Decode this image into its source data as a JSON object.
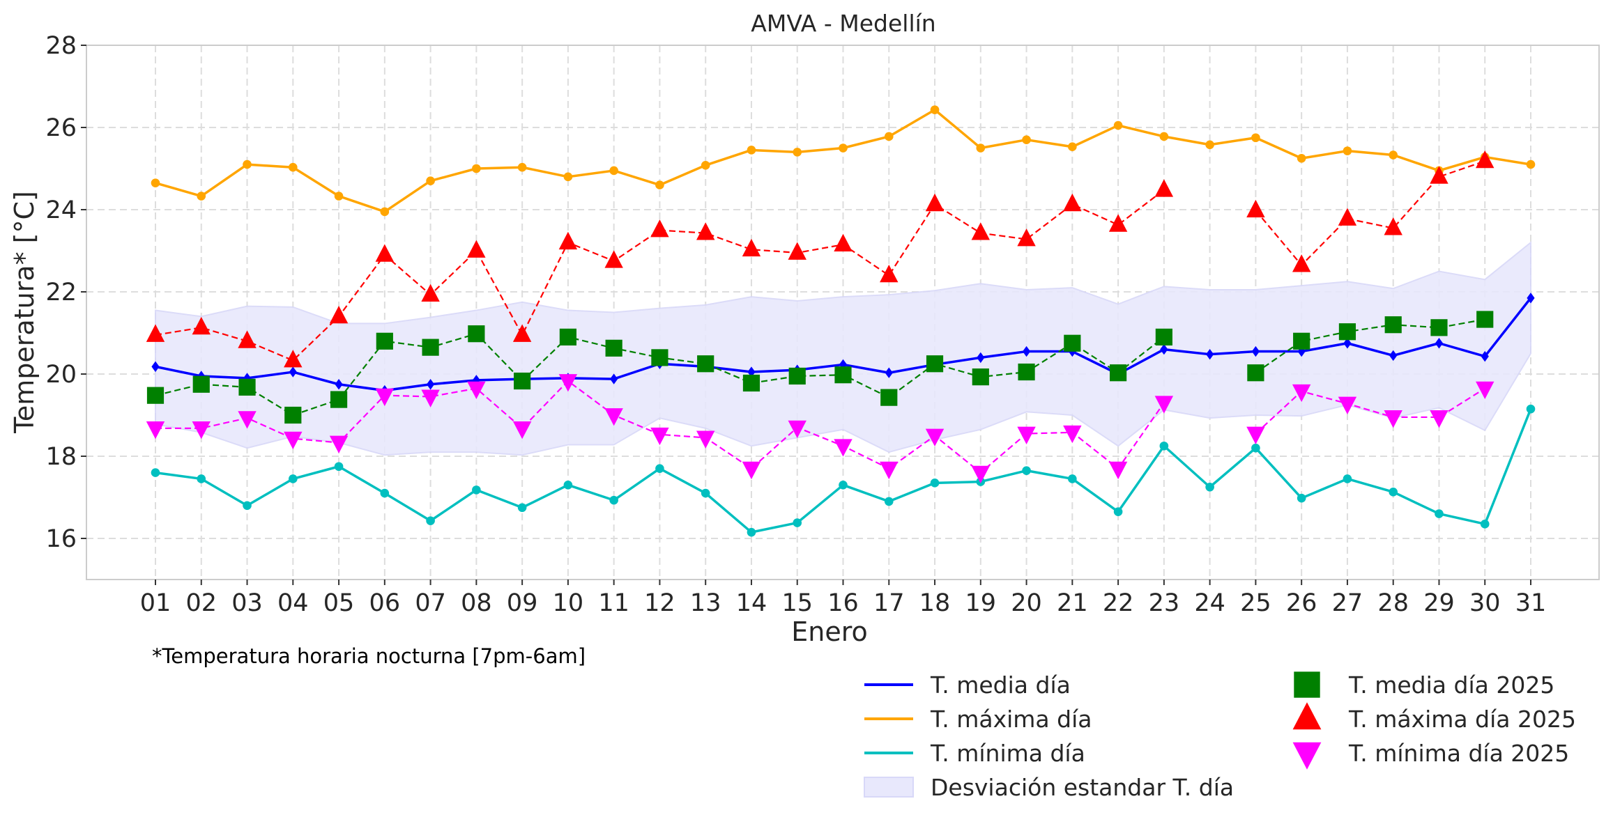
{
  "chart_data": {
    "type": "line",
    "title": "AMVA - Medellín",
    "xlabel": "Enero",
    "ylabel": "Temperatura* [°C]",
    "footnote": "*Temperatura horaria nocturna [7pm-6am]",
    "ylim": [
      15,
      28
    ],
    "yticks": [
      16,
      18,
      20,
      22,
      24,
      26,
      28
    ],
    "grid": true,
    "legend_position": "bottom-right (outside, below axis)",
    "categories": [
      "01",
      "02",
      "03",
      "04",
      "05",
      "06",
      "07",
      "08",
      "09",
      "10",
      "11",
      "12",
      "13",
      "14",
      "15",
      "16",
      "17",
      "18",
      "19",
      "20",
      "21",
      "22",
      "23",
      "24",
      "25",
      "26",
      "27",
      "28",
      "29",
      "30",
      "31"
    ],
    "series": [
      {
        "name": "T. media día",
        "color": "#0000ff",
        "style": "solid",
        "marker": "diamond",
        "values": [
          20.18,
          19.95,
          19.9,
          20.05,
          19.75,
          19.6,
          19.75,
          19.85,
          19.88,
          19.9,
          19.88,
          20.25,
          20.18,
          20.05,
          20.1,
          20.23,
          20.03,
          20.23,
          20.4,
          20.55,
          20.55,
          20.0,
          20.6,
          20.48,
          20.55,
          20.55,
          20.75,
          20.45,
          20.75,
          20.43,
          21.85
        ]
      },
      {
        "name": "T. máxima día",
        "color": "#ffa500",
        "style": "solid",
        "marker": "circle",
        "values": [
          24.65,
          24.33,
          25.1,
          25.03,
          24.33,
          23.95,
          24.7,
          25.0,
          25.03,
          24.8,
          24.95,
          24.6,
          25.08,
          25.45,
          25.4,
          25.5,
          25.78,
          26.43,
          25.5,
          25.7,
          25.53,
          26.05,
          25.78,
          25.58,
          25.75,
          25.25,
          25.43,
          25.33,
          24.95,
          25.28,
          25.1
        ]
      },
      {
        "name": "T. mínima día",
        "color": "#00bfbf",
        "style": "solid",
        "marker": "circle",
        "values": [
          17.6,
          17.45,
          16.8,
          17.45,
          17.75,
          17.1,
          16.43,
          17.18,
          16.75,
          17.3,
          16.93,
          17.7,
          17.1,
          16.15,
          16.38,
          17.3,
          16.9,
          17.35,
          17.38,
          17.65,
          17.45,
          16.65,
          18.25,
          17.25,
          18.2,
          16.98,
          17.45,
          17.13,
          16.6,
          16.35,
          19.15
        ]
      },
      {
        "name": "T. media día 2025",
        "color": "#008000",
        "style": "dashed",
        "marker": "square",
        "values": [
          19.48,
          19.75,
          19.68,
          19.0,
          19.38,
          20.8,
          20.65,
          20.98,
          19.83,
          20.9,
          20.63,
          20.4,
          20.25,
          19.78,
          19.95,
          19.98,
          19.43,
          20.25,
          19.93,
          20.05,
          20.75,
          20.03,
          20.9,
          null,
          20.03,
          20.8,
          21.03,
          21.2,
          21.13,
          21.33,
          null
        ]
      },
      {
        "name": "T. máxima día 2025",
        "color": "#ff0000",
        "style": "dashed",
        "marker": "triangle-up",
        "values": [
          20.95,
          21.13,
          20.8,
          20.33,
          21.4,
          22.9,
          21.93,
          23.0,
          20.95,
          23.2,
          22.75,
          23.5,
          23.43,
          23.03,
          22.95,
          23.15,
          22.4,
          24.13,
          23.43,
          23.28,
          24.13,
          23.63,
          24.48,
          null,
          23.98,
          22.65,
          23.78,
          23.55,
          24.8,
          25.18,
          null
        ]
      },
      {
        "name": "T. mínima día 2025",
        "color": "#ff00ff",
        "style": "dashed",
        "marker": "triangle-down",
        "values": [
          18.68,
          18.68,
          18.93,
          18.43,
          18.33,
          19.48,
          19.45,
          19.65,
          18.68,
          19.83,
          19.0,
          18.53,
          18.45,
          17.7,
          18.7,
          18.25,
          17.7,
          18.5,
          17.6,
          18.55,
          18.58,
          17.7,
          19.3,
          null,
          18.55,
          19.58,
          19.28,
          18.95,
          18.95,
          19.65,
          null
        ]
      }
    ],
    "band": {
      "name": "Desviación estandar T. día",
      "color": "#e8e8fc",
      "upper": [
        21.55,
        21.4,
        21.65,
        21.63,
        21.23,
        21.23,
        21.38,
        21.55,
        21.75,
        21.55,
        21.5,
        21.6,
        21.68,
        21.88,
        21.78,
        21.88,
        21.93,
        22.03,
        22.2,
        22.05,
        22.1,
        21.7,
        22.13,
        22.05,
        22.05,
        22.15,
        22.25,
        22.08,
        22.5,
        22.3,
        23.2
      ],
      "lower": [
        18.78,
        18.58,
        18.2,
        18.48,
        18.33,
        18.03,
        18.1,
        18.1,
        18.03,
        18.28,
        18.28,
        18.93,
        18.68,
        18.25,
        18.45,
        18.65,
        18.1,
        18.4,
        18.65,
        19.08,
        19.0,
        18.25,
        19.13,
        18.93,
        19.0,
        18.98,
        19.25,
        18.93,
        19.18,
        18.63,
        20.5
      ]
    },
    "legend": [
      {
        "label": "T. media día",
        "kind": "line",
        "color": "#0000ff"
      },
      {
        "label": "T. máxima día",
        "kind": "line",
        "color": "#ffa500"
      },
      {
        "label": "T. mínima día",
        "kind": "line",
        "color": "#00bfbf"
      },
      {
        "label": "Desviación estandar T. día",
        "kind": "patch",
        "color": "#e8e8fc"
      },
      {
        "label": "T. media día 2025",
        "kind": "square",
        "color": "#008000"
      },
      {
        "label": "T. máxima día 2025",
        "kind": "triangle-up",
        "color": "#ff0000"
      },
      {
        "label": "T. mínima día 2025",
        "kind": "triangle-down",
        "color": "#ff00ff"
      }
    ]
  }
}
